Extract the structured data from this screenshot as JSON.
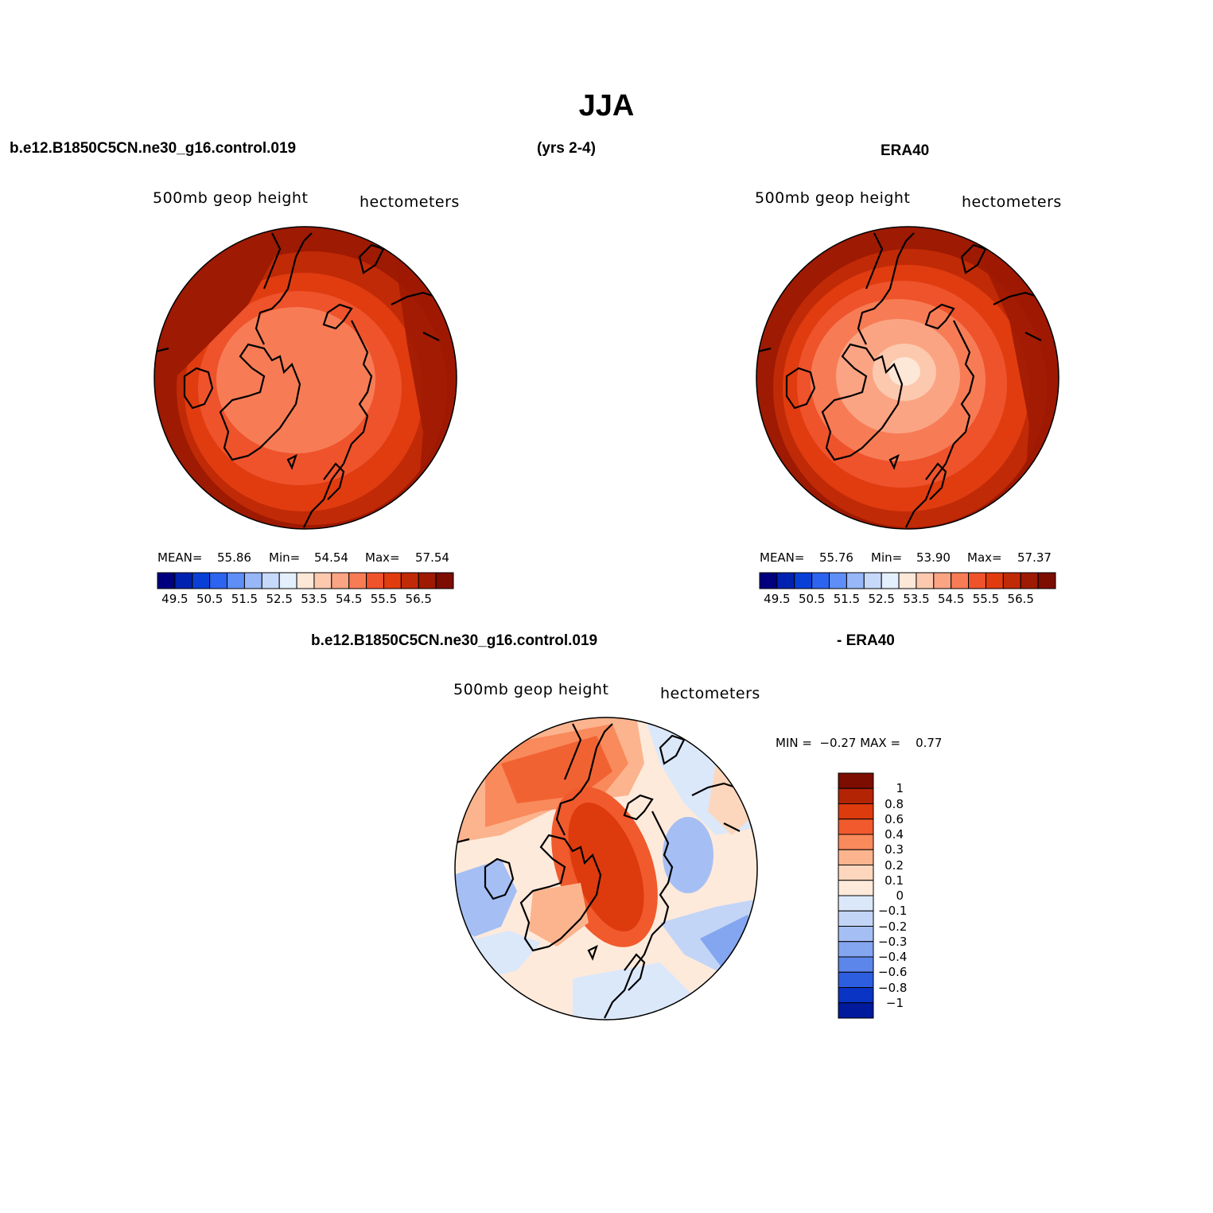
{
  "title": "JJA",
  "header": {
    "left": "b.e12.B1850C5CN.ne30_g16.control.019",
    "center": "(yrs 2-4)",
    "right": "ERA40"
  },
  "diff_header": {
    "left": "b.e12.B1850C5CN.ne30_g16.control.019",
    "right": "- ERA40"
  },
  "panels": [
    {
      "variable": "500mb geop height",
      "units": "hectometers",
      "mean_label": "MEAN=",
      "mean": "55.86",
      "min_label": "Min=",
      "min": "54.54",
      "max_label": "Max=",
      "max": "57.54",
      "colorbar_ticks": [
        "49.5",
        "50.5",
        "51.5",
        "52.5",
        "53.5",
        "54.5",
        "55.5",
        "56.5"
      ]
    },
    {
      "variable": "500mb geop height",
      "units": "hectometers",
      "mean_label": "MEAN=",
      "mean": "55.76",
      "min_label": "Min=",
      "min": "53.90",
      "max_label": "Max=",
      "max": "57.37",
      "colorbar_ticks": [
        "49.5",
        "50.5",
        "51.5",
        "52.5",
        "53.5",
        "54.5",
        "55.5",
        "56.5"
      ]
    }
  ],
  "diff_panel": {
    "variable": "500mb geop height",
    "units": "hectometers",
    "minmax_label": "MIN =  −0.27 MAX =    0.77",
    "colorbar_ticks": [
      "1",
      "0.8",
      "0.6",
      "0.4",
      "0.3",
      "0.2",
      "0.1",
      "0",
      "−0.1",
      "−0.2",
      "−0.3",
      "−0.4",
      "−0.6",
      "−0.8",
      "−1"
    ]
  },
  "palette": {
    "full": [
      "#00007f",
      "#0022b0",
      "#0a3fd6",
      "#2d64ef",
      "#5e8ef6",
      "#97b7f8",
      "#c6d9fb",
      "#e4effd",
      "#fde7d7",
      "#fcc9ae",
      "#fba484",
      "#f77c55",
      "#ef532c",
      "#e03c10",
      "#c12a06",
      "#9e1a02",
      "#7d0d00"
    ],
    "diff": [
      "#7d0d00",
      "#b32405",
      "#dd3a0e",
      "#f05a2c",
      "#f98a5c",
      "#fcb48e",
      "#fdd7bd",
      "#feeadb",
      "#dbe8fa",
      "#c3d5f7",
      "#a5bff4",
      "#84a6f0",
      "#5d86eb",
      "#2e5ee0",
      "#0a34c4",
      "#001a9e"
    ]
  },
  "chart_data": {
    "type": "heatmap",
    "description_none": "",
    "maps": [
      {
        "variable": "500mb geop height",
        "units": "hectometers",
        "mean": 55.86,
        "min": 54.54,
        "max": 57.54,
        "levels": [
          49.5,
          50.0,
          50.5,
          51.0,
          51.5,
          52.0,
          52.5,
          53.0,
          53.5,
          54.0,
          54.5,
          55.0,
          55.5,
          56.0,
          56.5,
          57.0
        ]
      },
      {
        "variable": "500mb geop height",
        "units": "hectometers",
        "mean": 55.76,
        "min": 53.9,
        "max": 57.37,
        "levels": [
          49.5,
          50.0,
          50.5,
          51.0,
          51.5,
          52.0,
          52.5,
          53.0,
          53.5,
          54.0,
          54.5,
          55.0,
          55.5,
          56.0,
          56.5,
          57.0
        ]
      },
      {
        "variable": "500mb geop height",
        "units": "hectometers",
        "min": -0.27,
        "max": 0.77,
        "levels": [
          1,
          0.8,
          0.6,
          0.4,
          0.3,
          0.2,
          0.1,
          0,
          -0.1,
          -0.2,
          -0.3,
          -0.4,
          -0.6,
          -0.8,
          -1
        ]
      }
    ]
  }
}
